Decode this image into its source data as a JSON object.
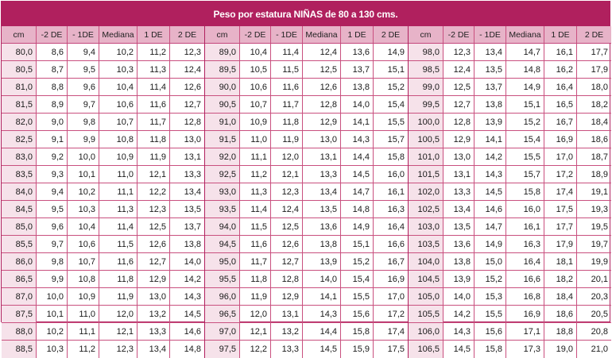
{
  "title": "Peso por estatura NIÑAS de 80 a 130 cms.",
  "headers": [
    "cm",
    "-2 DE",
    "- 1DE",
    "Mediana",
    "1 DE",
    "2 DE"
  ],
  "blocks": [
    {
      "rows": [
        [
          "80,0",
          "8,6",
          "9,4",
          "10,2",
          "11,2",
          "12,3"
        ],
        [
          "80,5",
          "8,7",
          "9,5",
          "10,3",
          "11,3",
          "12,4"
        ],
        [
          "81,0",
          "8,8",
          "9,6",
          "10,4",
          "11,4",
          "12,6"
        ],
        [
          "81,5",
          "8,9",
          "9,7",
          "10,6",
          "11,6",
          "12,7"
        ],
        [
          "82,0",
          "9,0",
          "9,8",
          "10,7",
          "11,7",
          "12,8"
        ],
        [
          "82,5",
          "9,1",
          "9,9",
          "10,8",
          "11,8",
          "13,0"
        ],
        [
          "83,0",
          "9,2",
          "10,0",
          "10,9",
          "11,9",
          "13,1"
        ],
        [
          "83,5",
          "9,3",
          "10,1",
          "11,0",
          "12,1",
          "13,3"
        ],
        [
          "84,0",
          "9,4",
          "10,2",
          "11,1",
          "12,2",
          "13,4"
        ],
        [
          "84,5",
          "9,5",
          "10,3",
          "11,3",
          "12,3",
          "13,5"
        ],
        [
          "85,0",
          "9,6",
          "10,4",
          "11,4",
          "12,5",
          "13,7"
        ],
        [
          "85,5",
          "9,7",
          "10,6",
          "11,5",
          "12,6",
          "13,8"
        ],
        [
          "86,0",
          "9,8",
          "10,7",
          "11,6",
          "12,7",
          "14,0"
        ],
        [
          "86,5",
          "9,9",
          "10,8",
          "11,8",
          "12,9",
          "14,2"
        ],
        [
          "87,0",
          "10,0",
          "10,9",
          "11,9",
          "13,0",
          "14,3"
        ],
        [
          "87,5",
          "10,1",
          "11,0",
          "12,0",
          "13,2",
          "14,5"
        ],
        [
          "88,0",
          "10,2",
          "11,1",
          "12,1",
          "13,3",
          "14,6"
        ],
        [
          "88,5",
          "10,3",
          "11,2",
          "12,3",
          "13,4",
          "14,8"
        ]
      ]
    },
    {
      "rows": [
        [
          "89,0",
          "10,4",
          "11,4",
          "12,4",
          "13,6",
          "14,9"
        ],
        [
          "89,5",
          "10,5",
          "11,5",
          "12,5",
          "13,7",
          "15,1"
        ],
        [
          "90,0",
          "10,6",
          "11,6",
          "12,6",
          "13,8",
          "15,2"
        ],
        [
          "90,5",
          "10,7",
          "11,7",
          "12,8",
          "14,0",
          "15,4"
        ],
        [
          "91,0",
          "10,9",
          "11,8",
          "12,9",
          "14,1",
          "15,5"
        ],
        [
          "91,5",
          "11,0",
          "11,9",
          "13,0",
          "14,3",
          "15,7"
        ],
        [
          "92,0",
          "11,1",
          "12,0",
          "13,1",
          "14,4",
          "15,8"
        ],
        [
          "92,5",
          "11,2",
          "12,1",
          "13,3",
          "14,5",
          "16,0"
        ],
        [
          "93,0",
          "11,3",
          "12,3",
          "13,4",
          "14,7",
          "16,1"
        ],
        [
          "93,5",
          "11,4",
          "12,4",
          "13,5",
          "14,8",
          "16,3"
        ],
        [
          "94,0",
          "11,5",
          "12,5",
          "13,6",
          "14,9",
          "16,4"
        ],
        [
          "94,5",
          "11,6",
          "12,6",
          "13,8",
          "15,1",
          "16,6"
        ],
        [
          "95,0",
          "11,7",
          "12,7",
          "13,9",
          "15,2",
          "16,7"
        ],
        [
          "95,5",
          "11,8",
          "12,8",
          "14,0",
          "15,4",
          "16,9"
        ],
        [
          "96,0",
          "11,9",
          "12,9",
          "14,1",
          "15,5",
          "17,0"
        ],
        [
          "96,5",
          "12,0",
          "13,1",
          "14,3",
          "15,6",
          "17,2"
        ],
        [
          "97,0",
          "12,1",
          "13,2",
          "14,4",
          "15,8",
          "17,4"
        ],
        [
          "97,5",
          "12,2",
          "13,3",
          "14,5",
          "15,9",
          "17,5"
        ]
      ]
    },
    {
      "rows": [
        [
          "98,0",
          "12,3",
          "13,4",
          "14,7",
          "16,1",
          "17,7"
        ],
        [
          "98,5",
          "12,4",
          "13,5",
          "14,8",
          "16,2",
          "17,9"
        ],
        [
          "99,0",
          "12,5",
          "13,7",
          "14,9",
          "16,4",
          "18,0"
        ],
        [
          "99,5",
          "12,7",
          "13,8",
          "15,1",
          "16,5",
          "18,2"
        ],
        [
          "100,0",
          "12,8",
          "13,9",
          "15,2",
          "16,7",
          "18,4"
        ],
        [
          "100,5",
          "12,9",
          "14,1",
          "15,4",
          "16,9",
          "18,6"
        ],
        [
          "101,0",
          "13,0",
          "14,2",
          "15,5",
          "17,0",
          "18,7"
        ],
        [
          "101,5",
          "13,1",
          "14,3",
          "15,7",
          "17,2",
          "18,9"
        ],
        [
          "102,0",
          "13,3",
          "14,5",
          "15,8",
          "17,4",
          "19,1"
        ],
        [
          "102,5",
          "13,4",
          "14,6",
          "16,0",
          "17,5",
          "19,3"
        ],
        [
          "103,0",
          "13,5",
          "14,7",
          "16,1",
          "17,7",
          "19,5"
        ],
        [
          "103,5",
          "13,6",
          "14,9",
          "16,3",
          "17,9",
          "19,7"
        ],
        [
          "104,0",
          "13,8",
          "15,0",
          "16,4",
          "18,1",
          "19,9"
        ],
        [
          "104,5",
          "13,9",
          "15,2",
          "16,6",
          "18,2",
          "20,1"
        ],
        [
          "105,0",
          "14,0",
          "15,3",
          "16,8",
          "18,4",
          "20,3"
        ],
        [
          "105,5",
          "14,2",
          "15,5",
          "16,9",
          "18,6",
          "20,5"
        ],
        [
          "106,0",
          "14,3",
          "15,6",
          "17,1",
          "18,8",
          "20,8"
        ],
        [
          "106,5",
          "14,5",
          "15,8",
          "17,3",
          "19,0",
          "21,0"
        ]
      ]
    }
  ]
}
